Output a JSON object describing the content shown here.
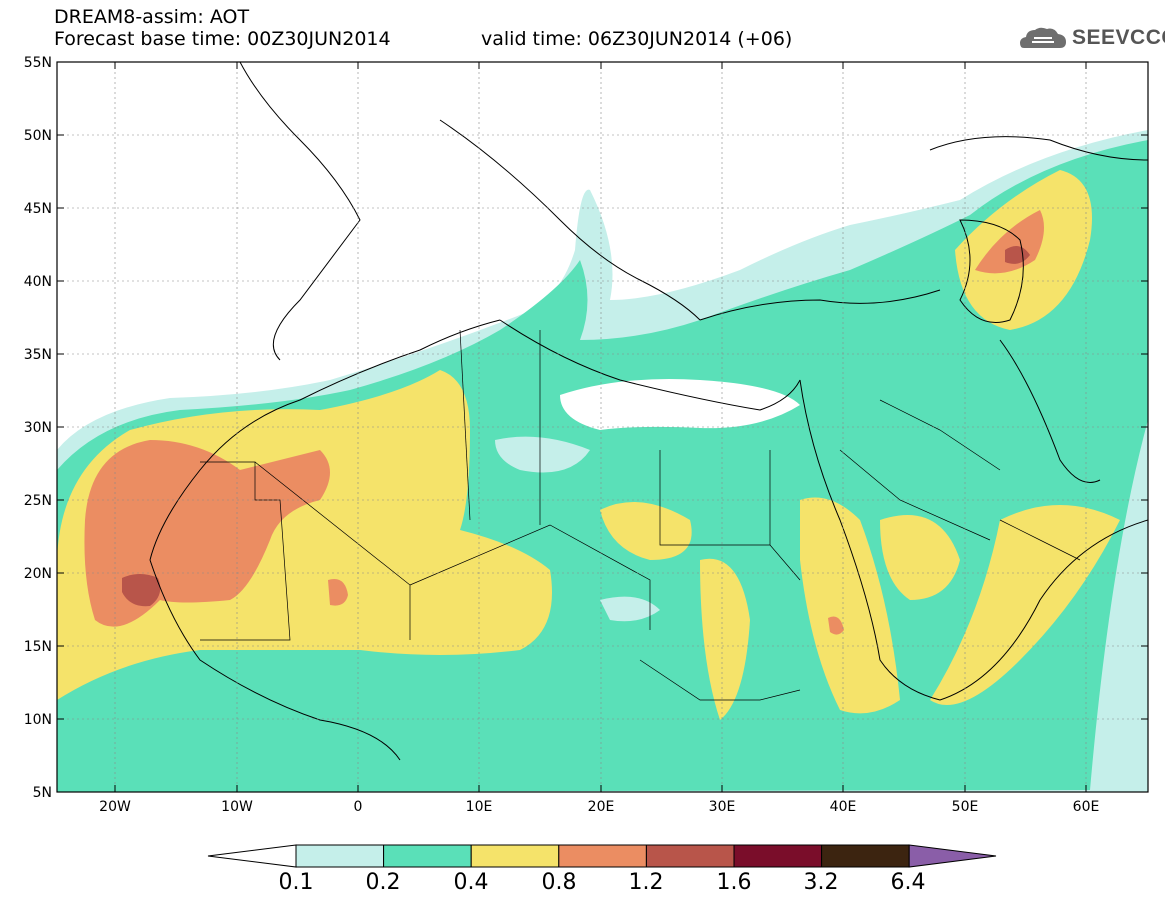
{
  "header": {
    "model": "DREAM8-assim: AOT",
    "base_time": "Forecast base time: 00Z30JUN2014",
    "valid_time": "valid time: 06Z30JUN2014 (+06)"
  },
  "logo": {
    "text": "SEEVCCC",
    "icon": "cloud-icon"
  },
  "axes": {
    "lat_labels": [
      "55N",
      "50N",
      "45N",
      "40N",
      "35N",
      "30N",
      "25N",
      "20N",
      "15N",
      "10N",
      "5N"
    ],
    "lon_labels": [
      "20W",
      "10W",
      "0",
      "10E",
      "20E",
      "30E",
      "40E",
      "50E",
      "60E"
    ]
  },
  "colorbar": {
    "labels": [
      "0.1",
      "0.2",
      "0.4",
      "0.8",
      "1.2",
      "1.6",
      "3.2",
      "6.4"
    ],
    "colors": [
      "#ffffff",
      "#c5efea",
      "#5ae0b8",
      "#f5e36a",
      "#eb8d62",
      "#b8554a",
      "#7a0d2a",
      "#3c2410",
      "#8a5ea8"
    ]
  }
}
